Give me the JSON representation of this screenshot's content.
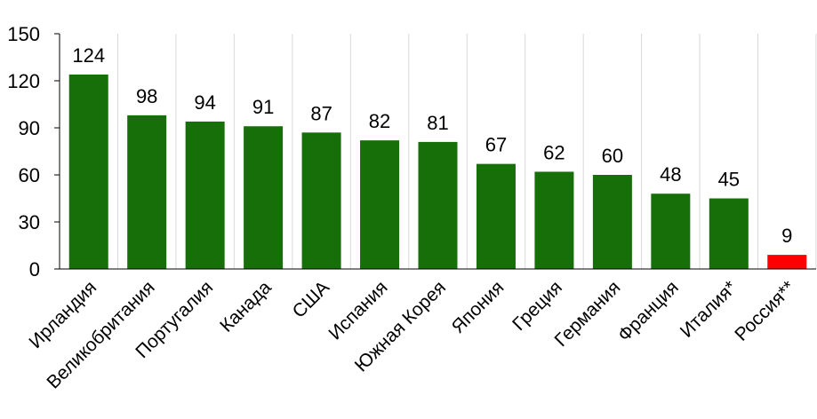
{
  "chart_data": {
    "type": "bar",
    "categories": [
      "Ирландия",
      "Великобритания",
      "Португалия",
      "Канада",
      "США",
      "Испания",
      "Южная Корея",
      "Япония",
      "Греция",
      "Германия",
      "Франция",
      "Италия*",
      "Россия**"
    ],
    "values": [
      124,
      98,
      94,
      91,
      87,
      82,
      81,
      67,
      62,
      60,
      48,
      45,
      9
    ],
    "colors": [
      "#176f09",
      "#176f09",
      "#176f09",
      "#176f09",
      "#176f09",
      "#176f09",
      "#176f09",
      "#176f09",
      "#176f09",
      "#176f09",
      "#176f09",
      "#176f09",
      "#ff0000"
    ],
    "ylim": [
      0,
      150
    ],
    "yticks": [
      0,
      30,
      60,
      90,
      120,
      150
    ]
  }
}
